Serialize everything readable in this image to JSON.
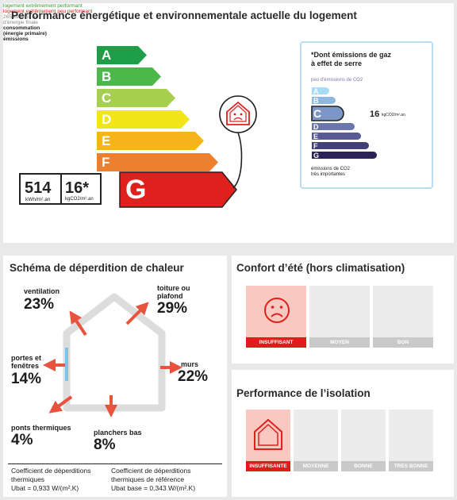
{
  "dpe": {
    "title": "Performance énergétique et environnementale actuelle du logement",
    "top_label": "logement extrêmement performant",
    "bottom_label": "logement extrêmement peu performant",
    "classes": [
      {
        "letter": "A",
        "color": "#1e9e48"
      },
      {
        "letter": "B",
        "color": "#4db84a"
      },
      {
        "letter": "C",
        "color": "#a5cf4c"
      },
      {
        "letter": "D",
        "color": "#f2e51a"
      },
      {
        "letter": "E",
        "color": "#f5b41a"
      },
      {
        "letter": "F",
        "color": "#ee7f2d"
      },
      {
        "letter": "G",
        "color": "#e0201c"
      }
    ],
    "rating": "G",
    "final_energy_line1": "265 kWh/m².an",
    "final_energy_line2": "d'énergie finale",
    "consumption_label_line1": "consommation",
    "consumption_label_line2": "(énergie primaire)",
    "emissions_label": "émissions",
    "consumption_value": "514",
    "consumption_unit": "kWh/m².an",
    "emissions_value": "16*",
    "emissions_unit": "kgCO2/m².an",
    "icon": "sad-house-icon"
  },
  "gas": {
    "title_line1": "*Dont émissions de gaz",
    "title_line2": "à effet de serre",
    "low_label": "peu d'émissions de CO2",
    "high_label_line1": "émissions de CO2",
    "high_label_line2": "très importantes",
    "classes": [
      {
        "letter": "A",
        "color": "#a6dcf5"
      },
      {
        "letter": "B",
        "color": "#8fb8df"
      },
      {
        "letter": "C",
        "color": "#7c96c7"
      },
      {
        "letter": "D",
        "color": "#6a76ad"
      },
      {
        "letter": "E",
        "color": "#575a94"
      },
      {
        "letter": "F",
        "color": "#433f78"
      },
      {
        "letter": "G",
        "color": "#2b2356"
      }
    ],
    "rating": "C",
    "value": "16",
    "unit": "kgCO2/m².an"
  },
  "heat_loss": {
    "title": "Schéma de déperdition de chaleur",
    "items": [
      {
        "label_line1": "ventilation",
        "label_line2": "",
        "percent": "23%"
      },
      {
        "label_line1": "toiture ou",
        "label_line2": "plafond",
        "percent": "29%"
      },
      {
        "label_line1": "portes et",
        "label_line2": "fenêtres",
        "percent": "14%"
      },
      {
        "label_line1": "murs",
        "label_line2": "",
        "percent": "22%"
      },
      {
        "label_line1": "ponts thermiques",
        "label_line2": "",
        "percent": "4%"
      },
      {
        "label_line1": "planchers bas",
        "label_line2": "",
        "percent": "8%"
      }
    ],
    "coef1_line1": "Coefficient de déperditions",
    "coef1_line2": "thermiques",
    "coef1_line3": "Ubat = 0,933 W/(m².K)",
    "coef2_line1": "Coefficient de déperditions",
    "coef2_line2": "thermiques de référence",
    "coef2_line3": "Ubat base = 0,343 W/(m².K)"
  },
  "summer_comfort": {
    "title": "Confort d’été (hors climatisation)",
    "levels": [
      "INSUFFISANT",
      "MOYEN",
      "BON"
    ],
    "active": "INSUFFISANT",
    "icon": "sad-face-icon"
  },
  "insulation": {
    "title": "Performance de l’isolation",
    "levels": [
      "INSUFFISANTE",
      "MOYENNE",
      "BONNE",
      "TRES BONNE"
    ],
    "active": "INSUFFISANTE",
    "icon": "house-outline-icon"
  },
  "colors": {
    "accent_red": "#e0201c",
    "light_red": "#f9c9c1",
    "arrow_red": "#e8533f",
    "inactive_gray": "#ececec"
  }
}
